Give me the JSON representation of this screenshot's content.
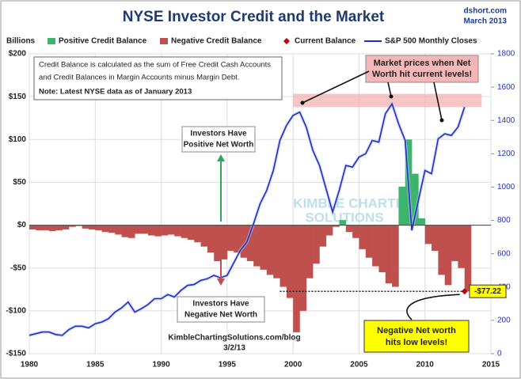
{
  "chart_data": {
    "type": "bar-line",
    "title": "NYSE Investor Credit and the Market",
    "source": "dshort.com",
    "date": "March 2013",
    "ylabel": "Billions",
    "x": [
      1980,
      1980.5,
      1981,
      1981.5,
      1982,
      1982.5,
      1983,
      1983.5,
      1984,
      1984.5,
      1985,
      1985.5,
      1986,
      1986.5,
      1987,
      1987.5,
      1988,
      1988.5,
      1989,
      1989.5,
      1990,
      1990.5,
      1991,
      1991.5,
      1992,
      1992.5,
      1993,
      1993.5,
      1994,
      1994.5,
      1995,
      1995.5,
      1996,
      1996.5,
      1997,
      1997.5,
      1998,
      1998.5,
      1999,
      1999.5,
      2000,
      2000.5,
      2001,
      2001.5,
      2002,
      2002.5,
      2003,
      2003.5,
      2004,
      2004.5,
      2005,
      2005.5,
      2006,
      2006.5,
      2007,
      2007.5,
      2008,
      2008.5,
      2009,
      2009.5,
      2010,
      2010.5,
      2011,
      2011.5,
      2012,
      2012.5,
      2013
    ],
    "series": [
      {
        "name": "Positive Credit Balance",
        "color": "#3cb46e",
        "values": [
          null,
          null,
          null,
          null,
          null,
          null,
          null,
          null,
          null,
          null,
          null,
          null,
          null,
          null,
          null,
          null,
          null,
          null,
          null,
          null,
          null,
          null,
          null,
          null,
          null,
          null,
          null,
          null,
          null,
          null,
          null,
          null,
          null,
          null,
          null,
          null,
          null,
          null,
          null,
          null,
          null,
          null,
          null,
          null,
          null,
          null,
          null,
          6,
          null,
          null,
          null,
          null,
          null,
          null,
          null,
          null,
          45,
          100,
          60,
          8,
          null,
          null,
          null,
          null,
          null,
          null,
          null
        ]
      },
      {
        "name": "Negative Credit Balance",
        "color": "#c0504d",
        "values": [
          -5,
          -6,
          -6,
          -7,
          -6,
          -5,
          -2,
          -1,
          -4,
          -5,
          -6,
          -8,
          -9,
          -11,
          -14,
          -15,
          -10,
          -10,
          -12,
          -13,
          -12,
          -11,
          -13,
          -15,
          -17,
          -20,
          -25,
          -32,
          -42,
          -40,
          -30,
          -32,
          -38,
          -42,
          -48,
          -52,
          -58,
          -62,
          -72,
          -85,
          -125,
          -100,
          -62,
          -45,
          -25,
          -12,
          -2,
          null,
          -8,
          -15,
          -28,
          -38,
          -48,
          -55,
          -68,
          -72,
          null,
          null,
          null,
          null,
          -22,
          -30,
          -58,
          -70,
          -42,
          -50,
          -77.22
        ]
      },
      {
        "name": "S&P 500 Monthly Closes",
        "color": "#1f2fbf",
        "axis": "y2",
        "values": [
          110,
          120,
          130,
          130,
          115,
          110,
          145,
          165,
          165,
          155,
          180,
          190,
          210,
          250,
          275,
          310,
          250,
          270,
          295,
          330,
          330,
          355,
          340,
          380,
          410,
          415,
          440,
          450,
          470,
          455,
          470,
          545,
          620,
          670,
          780,
          900,
          980,
          1100,
          1280,
          1370,
          1430,
          1450,
          1360,
          1220,
          1130,
          990,
          850,
          980,
          1130,
          1120,
          1180,
          1200,
          1280,
          1270,
          1440,
          1500,
          1380,
          1280,
          740,
          920,
          1100,
          1080,
          1290,
          1320,
          1310,
          1360,
          1480
        ]
      }
    ],
    "current": {
      "name": "Current Balance",
      "color": "#c00000",
      "x": 2013,
      "value": -77.22,
      "value_label": "-$77.22"
    },
    "xlim": [
      1980,
      2015
    ],
    "xticks": [
      1980,
      1985,
      1990,
      1995,
      2000,
      2005,
      2010,
      2015
    ],
    "ylim": [
      -150,
      200
    ],
    "yticks": [
      {
        "value": 200,
        "label": "$200"
      },
      {
        "value": 150,
        "label": "$150"
      },
      {
        "value": 100,
        "label": "$100"
      },
      {
        "value": 50,
        "label": "$50"
      },
      {
        "value": 0,
        "label": "$0"
      },
      {
        "value": -50,
        "label": "-$50"
      },
      {
        "value": -100,
        "label": "-$100"
      },
      {
        "value": -150,
        "label": "-$150"
      }
    ],
    "y2lim": [
      0,
      1800
    ],
    "y2ticks": [
      0,
      200,
      400,
      600,
      800,
      1000,
      1200,
      1400,
      1600,
      1800
    ],
    "grid": true,
    "legend": "top",
    "annotations": {
      "note": [
        "Credit Balance is calculated as the sum of Free Credit Cash Accounts",
        "and Credit Balances in Margin Accounts minus Margin Debt.",
        "Note: Latest NYSE data as of January 2013"
      ],
      "positive": [
        "Investors Have",
        "Positive Net Worth"
      ],
      "negative": [
        "Investors Have",
        "Negative Net Worth"
      ],
      "market": [
        "Market prices when Net",
        "Worth hit current levels!"
      ],
      "low": [
        "Negative Net worth",
        "hits low levels!"
      ],
      "credit": [
        "KimbleChartingSolutions.com/blog",
        "3/2/13"
      ],
      "watermark": [
        "KIMBLE CHARTING",
        "SOLUTIONS"
      ]
    }
  }
}
